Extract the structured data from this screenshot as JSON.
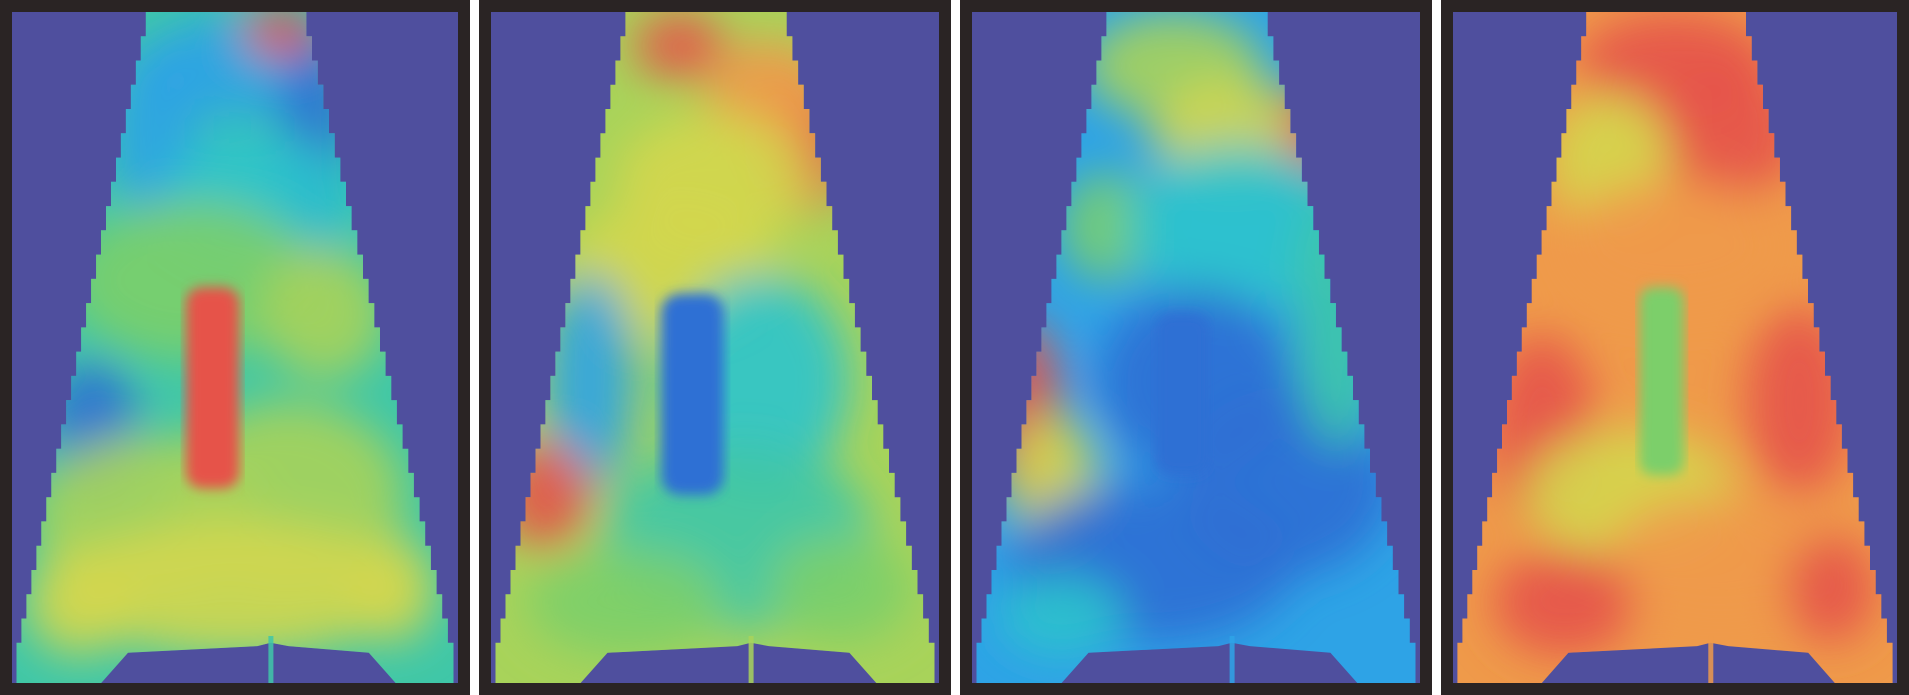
{
  "figure": {
    "panel_count": 4,
    "frame_color": "#2a2424",
    "background_color": "#4f4f9e",
    "colormap": "jet",
    "panels": [
      {
        "dominant": "cyan-green",
        "center_spot": "red"
      },
      {
        "dominant": "yellow-green",
        "center_spot": "blue"
      },
      {
        "dominant": "blue-cyan",
        "center_spot": "blue"
      },
      {
        "dominant": "red-orange",
        "center_spot": "green"
      }
    ]
  }
}
